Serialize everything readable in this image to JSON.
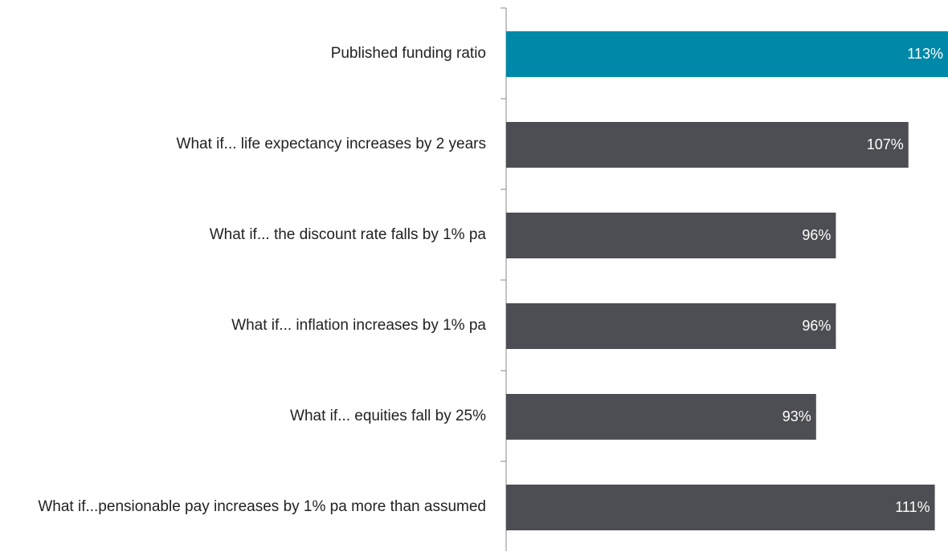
{
  "chart_data": {
    "type": "bar",
    "orientation": "horizontal",
    "categories": [
      "Published funding ratio",
      "What if... life expectancy increases by 2 years",
      "What if... the discount rate falls by 1% pa",
      "What if... inflation increases by 1% pa",
      "What if... equities fall by 25%",
      "What if...pensionable pay increases by 1% pa more than assumed"
    ],
    "values": [
      113,
      107,
      96,
      96,
      93,
      111
    ],
    "value_labels": [
      "113%",
      "107%",
      "96%",
      "96%",
      "93%",
      "111%"
    ],
    "colors": [
      "#0088a8",
      "#4d4e53",
      "#4d4e53",
      "#4d4e53",
      "#4d4e53",
      "#4d4e53"
    ],
    "xlim": [
      46,
      113
    ]
  }
}
